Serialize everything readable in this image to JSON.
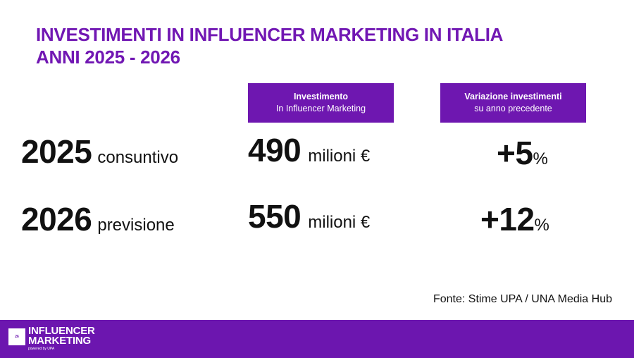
{
  "title": {
    "line1": "INVESTIMENTI IN INFLUENCER MARKETING IN ITALIA",
    "line2": "ANNI 2025 - 2026"
  },
  "headers": [
    {
      "line1": "Investimento",
      "line2": "In Influencer Marketing"
    },
    {
      "line1": "Variazione investimenti",
      "line2": "su anno precedente"
    }
  ],
  "rows": [
    {
      "year": "2025",
      "kind": "consuntivo",
      "value": "490",
      "unit": "milioni €",
      "change": "+5",
      "change_unit": "%"
    },
    {
      "year": "2026",
      "kind": "previsione",
      "value": "550",
      "unit": "milioni €",
      "change": "+12",
      "change_unit": "%"
    }
  ],
  "source": "Fonte: Stime UPA / UNA Media Hub",
  "footer": {
    "page_number": "26",
    "brand_line1": "INFLUENCER",
    "brand_line2": "MARKETING",
    "brand_sub": "powered by UPA"
  },
  "colors": {
    "accent": "#7117b3",
    "footer_bg": "#6c16af",
    "text": "#111111"
  }
}
